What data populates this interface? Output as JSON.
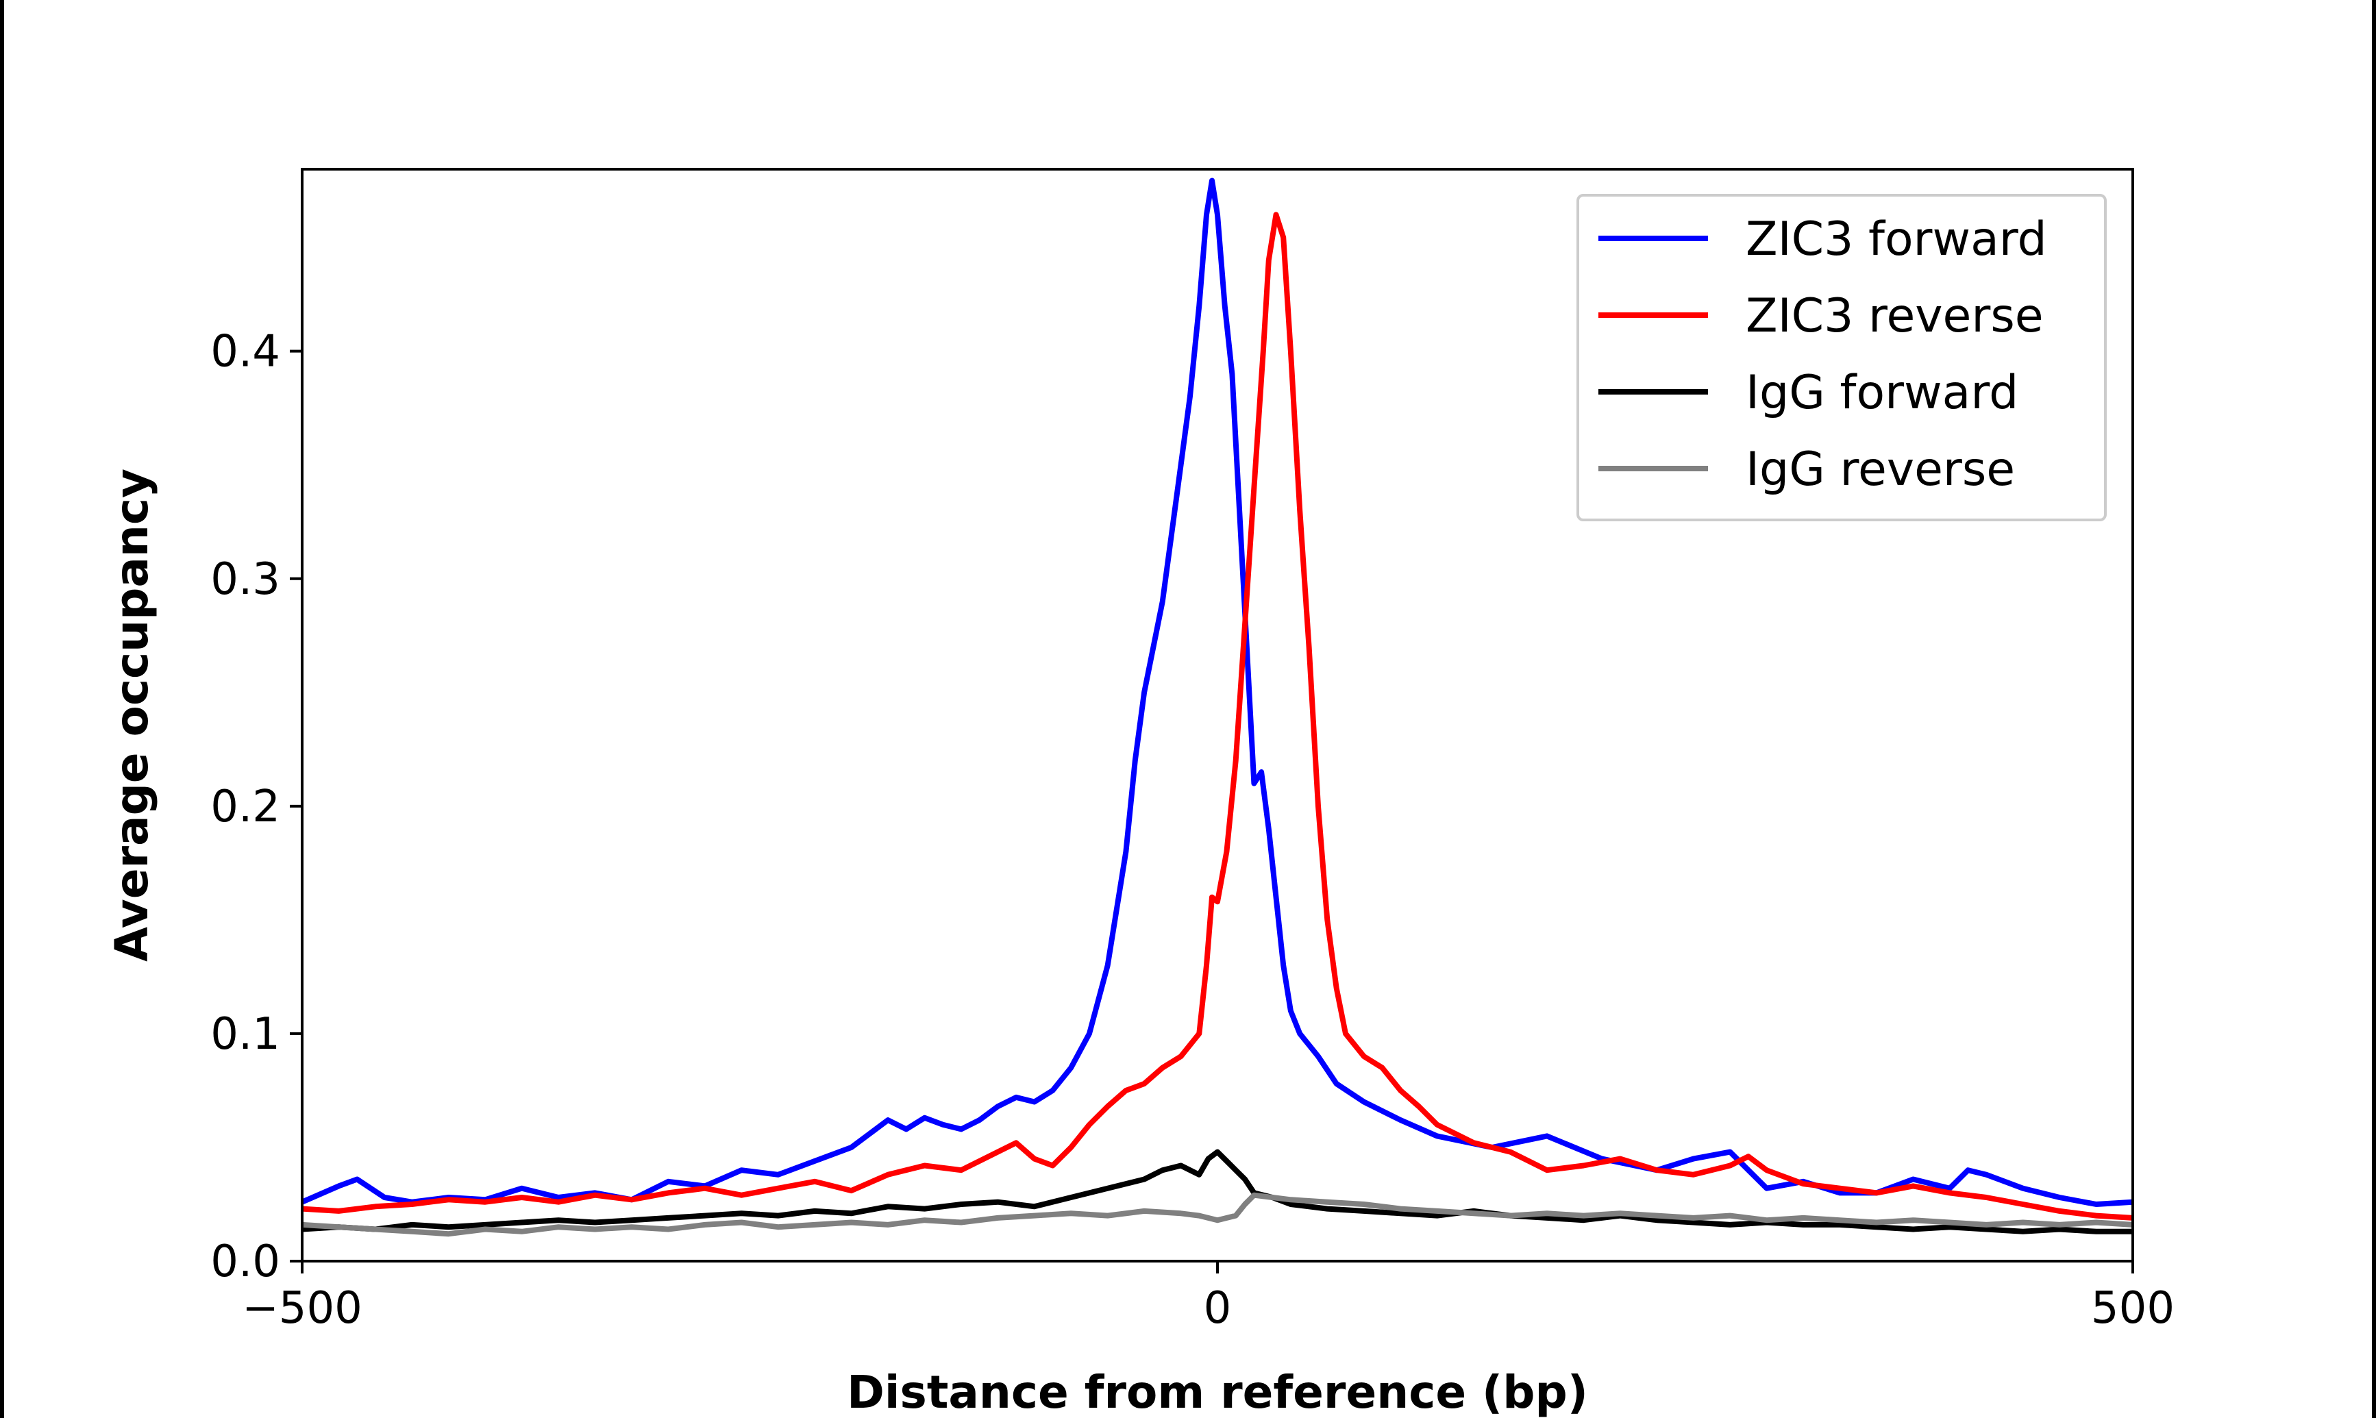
{
  "chart_data": {
    "type": "line",
    "title": "",
    "xlabel": "Distance from reference (bp)",
    "ylabel": "Average occupancy",
    "xlim": [
      -500,
      500
    ],
    "ylim": [
      0,
      0.48
    ],
    "grid": false,
    "legend_position": "top-right",
    "x_ticks": [
      {
        "value": -500,
        "label": "−500"
      },
      {
        "value": 0,
        "label": "0"
      },
      {
        "value": 500,
        "label": "500"
      }
    ],
    "y_ticks": [
      {
        "value": 0.0,
        "label": "0.0"
      },
      {
        "value": 0.1,
        "label": "0.1"
      },
      {
        "value": 0.2,
        "label": "0.2"
      },
      {
        "value": 0.3,
        "label": "0.3"
      },
      {
        "value": 0.4,
        "label": "0.4"
      }
    ],
    "series": [
      {
        "name": "ZIC3 forward",
        "color": "#0000ff",
        "points": [
          [
            -500,
            0.026
          ],
          [
            -480,
            0.033
          ],
          [
            -470,
            0.036
          ],
          [
            -455,
            0.028
          ],
          [
            -440,
            0.026
          ],
          [
            -420,
            0.028
          ],
          [
            -400,
            0.027
          ],
          [
            -380,
            0.032
          ],
          [
            -360,
            0.028
          ],
          [
            -340,
            0.03
          ],
          [
            -320,
            0.027
          ],
          [
            -300,
            0.035
          ],
          [
            -280,
            0.033
          ],
          [
            -260,
            0.04
          ],
          [
            -240,
            0.038
          ],
          [
            -220,
            0.044
          ],
          [
            -200,
            0.05
          ],
          [
            -180,
            0.062
          ],
          [
            -170,
            0.058
          ],
          [
            -160,
            0.063
          ],
          [
            -150,
            0.06
          ],
          [
            -140,
            0.058
          ],
          [
            -130,
            0.062
          ],
          [
            -120,
            0.068
          ],
          [
            -110,
            0.072
          ],
          [
            -100,
            0.07
          ],
          [
            -90,
            0.075
          ],
          [
            -80,
            0.085
          ],
          [
            -70,
            0.1
          ],
          [
            -60,
            0.13
          ],
          [
            -50,
            0.18
          ],
          [
            -45,
            0.22
          ],
          [
            -40,
            0.25
          ],
          [
            -30,
            0.29
          ],
          [
            -25,
            0.32
          ],
          [
            -20,
            0.35
          ],
          [
            -15,
            0.38
          ],
          [
            -10,
            0.42
          ],
          [
            -6,
            0.46
          ],
          [
            -3,
            0.475
          ],
          [
            0,
            0.46
          ],
          [
            4,
            0.42
          ],
          [
            8,
            0.39
          ],
          [
            12,
            0.33
          ],
          [
            16,
            0.27
          ],
          [
            20,
            0.21
          ],
          [
            24,
            0.215
          ],
          [
            28,
            0.19
          ],
          [
            32,
            0.16
          ],
          [
            36,
            0.13
          ],
          [
            40,
            0.11
          ],
          [
            45,
            0.1
          ],
          [
            55,
            0.09
          ],
          [
            65,
            0.078
          ],
          [
            80,
            0.07
          ],
          [
            100,
            0.062
          ],
          [
            120,
            0.055
          ],
          [
            150,
            0.05
          ],
          [
            180,
            0.055
          ],
          [
            210,
            0.045
          ],
          [
            240,
            0.04
          ],
          [
            260,
            0.045
          ],
          [
            280,
            0.048
          ],
          [
            300,
            0.032
          ],
          [
            320,
            0.035
          ],
          [
            340,
            0.03
          ],
          [
            360,
            0.03
          ],
          [
            380,
            0.036
          ],
          [
            400,
            0.032
          ],
          [
            410,
            0.04
          ],
          [
            420,
            0.038
          ],
          [
            440,
            0.032
          ],
          [
            460,
            0.028
          ],
          [
            480,
            0.025
          ],
          [
            500,
            0.026
          ]
        ]
      },
      {
        "name": "ZIC3 reverse",
        "color": "#ff0000",
        "points": [
          [
            -500,
            0.023
          ],
          [
            -480,
            0.022
          ],
          [
            -460,
            0.024
          ],
          [
            -440,
            0.025
          ],
          [
            -420,
            0.027
          ],
          [
            -400,
            0.026
          ],
          [
            -380,
            0.028
          ],
          [
            -360,
            0.026
          ],
          [
            -340,
            0.029
          ],
          [
            -320,
            0.027
          ],
          [
            -300,
            0.03
          ],
          [
            -280,
            0.032
          ],
          [
            -260,
            0.029
          ],
          [
            -240,
            0.032
          ],
          [
            -220,
            0.035
          ],
          [
            -200,
            0.031
          ],
          [
            -180,
            0.038
          ],
          [
            -160,
            0.042
          ],
          [
            -140,
            0.04
          ],
          [
            -120,
            0.048
          ],
          [
            -110,
            0.052
          ],
          [
            -100,
            0.045
          ],
          [
            -90,
            0.042
          ],
          [
            -80,
            0.05
          ],
          [
            -70,
            0.06
          ],
          [
            -60,
            0.068
          ],
          [
            -50,
            0.075
          ],
          [
            -40,
            0.078
          ],
          [
            -30,
            0.085
          ],
          [
            -20,
            0.09
          ],
          [
            -10,
            0.1
          ],
          [
            -6,
            0.13
          ],
          [
            -3,
            0.16
          ],
          [
            0,
            0.158
          ],
          [
            5,
            0.18
          ],
          [
            10,
            0.22
          ],
          [
            15,
            0.28
          ],
          [
            20,
            0.34
          ],
          [
            25,
            0.4
          ],
          [
            28,
            0.44
          ],
          [
            32,
            0.46
          ],
          [
            36,
            0.45
          ],
          [
            40,
            0.4
          ],
          [
            45,
            0.33
          ],
          [
            50,
            0.27
          ],
          [
            55,
            0.2
          ],
          [
            60,
            0.15
          ],
          [
            65,
            0.12
          ],
          [
            70,
            0.1
          ],
          [
            80,
            0.09
          ],
          [
            90,
            0.085
          ],
          [
            100,
            0.075
          ],
          [
            110,
            0.068
          ],
          [
            120,
            0.06
          ],
          [
            140,
            0.052
          ],
          [
            160,
            0.048
          ],
          [
            180,
            0.04
          ],
          [
            200,
            0.042
          ],
          [
            220,
            0.045
          ],
          [
            240,
            0.04
          ],
          [
            260,
            0.038
          ],
          [
            280,
            0.042
          ],
          [
            290,
            0.046
          ],
          [
            300,
            0.04
          ],
          [
            320,
            0.034
          ],
          [
            340,
            0.032
          ],
          [
            360,
            0.03
          ],
          [
            380,
            0.033
          ],
          [
            400,
            0.03
          ],
          [
            420,
            0.028
          ],
          [
            440,
            0.025
          ],
          [
            460,
            0.022
          ],
          [
            480,
            0.02
          ],
          [
            500,
            0.019
          ]
        ]
      },
      {
        "name": "IgG forward",
        "color": "#000000",
        "points": [
          [
            -500,
            0.014
          ],
          [
            -480,
            0.015
          ],
          [
            -460,
            0.014
          ],
          [
            -440,
            0.016
          ],
          [
            -420,
            0.015
          ],
          [
            -400,
            0.016
          ],
          [
            -380,
            0.017
          ],
          [
            -360,
            0.018
          ],
          [
            -340,
            0.017
          ],
          [
            -320,
            0.018
          ],
          [
            -300,
            0.019
          ],
          [
            -280,
            0.02
          ],
          [
            -260,
            0.021
          ],
          [
            -240,
            0.02
          ],
          [
            -220,
            0.022
          ],
          [
            -200,
            0.021
          ],
          [
            -180,
            0.024
          ],
          [
            -160,
            0.023
          ],
          [
            -140,
            0.025
          ],
          [
            -120,
            0.026
          ],
          [
            -100,
            0.024
          ],
          [
            -80,
            0.028
          ],
          [
            -60,
            0.032
          ],
          [
            -40,
            0.036
          ],
          [
            -30,
            0.04
          ],
          [
            -20,
            0.042
          ],
          [
            -10,
            0.038
          ],
          [
            -5,
            0.045
          ],
          [
            0,
            0.048
          ],
          [
            5,
            0.044
          ],
          [
            10,
            0.04
          ],
          [
            15,
            0.036
          ],
          [
            20,
            0.03
          ],
          [
            30,
            0.028
          ],
          [
            40,
            0.025
          ],
          [
            60,
            0.023
          ],
          [
            80,
            0.022
          ],
          [
            100,
            0.021
          ],
          [
            120,
            0.02
          ],
          [
            140,
            0.022
          ],
          [
            160,
            0.02
          ],
          [
            180,
            0.019
          ],
          [
            200,
            0.018
          ],
          [
            220,
            0.02
          ],
          [
            240,
            0.018
          ],
          [
            260,
            0.017
          ],
          [
            280,
            0.016
          ],
          [
            300,
            0.017
          ],
          [
            320,
            0.016
          ],
          [
            340,
            0.016
          ],
          [
            360,
            0.015
          ],
          [
            380,
            0.014
          ],
          [
            400,
            0.015
          ],
          [
            420,
            0.014
          ],
          [
            440,
            0.013
          ],
          [
            460,
            0.014
          ],
          [
            480,
            0.013
          ],
          [
            500,
            0.013
          ]
        ]
      },
      {
        "name": "IgG reverse",
        "color": "#808080",
        "points": [
          [
            -500,
            0.016
          ],
          [
            -480,
            0.015
          ],
          [
            -460,
            0.014
          ],
          [
            -440,
            0.013
          ],
          [
            -420,
            0.012
          ],
          [
            -400,
            0.014
          ],
          [
            -380,
            0.013
          ],
          [
            -360,
            0.015
          ],
          [
            -340,
            0.014
          ],
          [
            -320,
            0.015
          ],
          [
            -300,
            0.014
          ],
          [
            -280,
            0.016
          ],
          [
            -260,
            0.017
          ],
          [
            -240,
            0.015
          ],
          [
            -220,
            0.016
          ],
          [
            -200,
            0.017
          ],
          [
            -180,
            0.016
          ],
          [
            -160,
            0.018
          ],
          [
            -140,
            0.017
          ],
          [
            -120,
            0.019
          ],
          [
            -100,
            0.02
          ],
          [
            -80,
            0.021
          ],
          [
            -60,
            0.02
          ],
          [
            -40,
            0.022
          ],
          [
            -20,
            0.021
          ],
          [
            -10,
            0.02
          ],
          [
            0,
            0.018
          ],
          [
            10,
            0.02
          ],
          [
            15,
            0.025
          ],
          [
            20,
            0.029
          ],
          [
            30,
            0.028
          ],
          [
            40,
            0.027
          ],
          [
            60,
            0.026
          ],
          [
            80,
            0.025
          ],
          [
            100,
            0.023
          ],
          [
            120,
            0.022
          ],
          [
            140,
            0.021
          ],
          [
            160,
            0.02
          ],
          [
            180,
            0.021
          ],
          [
            200,
            0.02
          ],
          [
            220,
            0.021
          ],
          [
            240,
            0.02
          ],
          [
            260,
            0.019
          ],
          [
            280,
            0.02
          ],
          [
            300,
            0.018
          ],
          [
            320,
            0.019
          ],
          [
            340,
            0.018
          ],
          [
            360,
            0.017
          ],
          [
            380,
            0.018
          ],
          [
            400,
            0.017
          ],
          [
            420,
            0.016
          ],
          [
            440,
            0.017
          ],
          [
            460,
            0.016
          ],
          [
            480,
            0.017
          ],
          [
            500,
            0.016
          ]
        ]
      }
    ]
  }
}
